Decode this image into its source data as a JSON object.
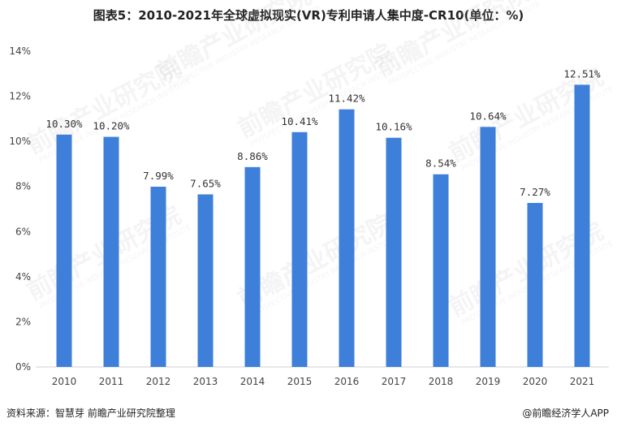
{
  "chart_data": {
    "type": "bar",
    "title": "图表5：2010-2021年全球虚拟现实(VR)专利申请人集中度-CR10(单位：%)",
    "categories": [
      "2010",
      "2011",
      "2012",
      "2013",
      "2014",
      "2015",
      "2016",
      "2017",
      "2018",
      "2019",
      "2020",
      "2021"
    ],
    "values": [
      10.3,
      10.2,
      7.99,
      7.65,
      8.86,
      10.41,
      11.42,
      10.16,
      8.54,
      10.64,
      7.27,
      12.51
    ],
    "data_labels": [
      "10.30%",
      "10.20%",
      "7.99%",
      "7.65%",
      "8.86%",
      "10.41%",
      "11.42%",
      "10.16%",
      "8.54%",
      "10.64%",
      "7.27%",
      "12.51%"
    ],
    "y_ticks": [
      "0%",
      "2%",
      "4%",
      "6%",
      "8%",
      "10%",
      "12%",
      "14%"
    ],
    "ylim": [
      0,
      14
    ],
    "xlabel": "",
    "ylabel": "",
    "bar_color": "#3e7fd9",
    "grid": false
  },
  "source": "资料来源：智慧芽 前瞻产业研究院整理",
  "brand": "@前瞻经济学人APP",
  "watermark": "前瞻产业研究院",
  "watermark_sub": "PROSPECTIVE INDUSTRY RESEARCH INSTITUTE"
}
